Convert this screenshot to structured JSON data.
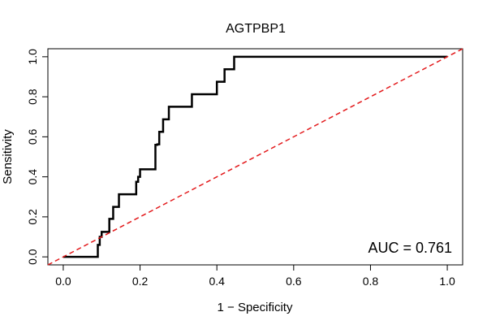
{
  "chart_data": {
    "type": "line",
    "title": "AGTPBP1",
    "xlabel": "1 − Specificity",
    "ylabel": "Sensitivity",
    "xlim": [
      -0.04,
      1.04
    ],
    "ylim": [
      -0.04,
      1.04
    ],
    "x_ticks": [
      "0.0",
      "0.2",
      "0.4",
      "0.6",
      "0.8",
      "1.0"
    ],
    "y_ticks": [
      "0.0",
      "0.2",
      "0.4",
      "0.6",
      "0.8",
      "1.0"
    ],
    "grid": false,
    "annotation": "AUC = 0.761",
    "series": [
      {
        "color": "#000000",
        "style": "solid",
        "x": [
          0.0,
          0.09,
          0.09,
          0.095,
          0.095,
          0.1,
          0.1,
          0.12,
          0.12,
          0.13,
          0.13,
          0.145,
          0.145,
          0.19,
          0.19,
          0.195,
          0.195,
          0.2,
          0.2,
          0.24,
          0.24,
          0.245,
          0.245,
          0.25,
          0.25,
          0.26,
          0.26,
          0.275,
          0.275,
          0.335,
          0.335,
          0.4,
          0.4,
          0.42,
          0.42,
          0.445,
          0.445,
          1.0
        ],
        "y": [
          0.0,
          0.0,
          0.06,
          0.06,
          0.1,
          0.1,
          0.125,
          0.125,
          0.19,
          0.19,
          0.25,
          0.25,
          0.3125,
          0.3125,
          0.375,
          0.375,
          0.4,
          0.4,
          0.4375,
          0.4375,
          0.56,
          0.56,
          0.5625,
          0.5625,
          0.625,
          0.625,
          0.6875,
          0.6875,
          0.75,
          0.75,
          0.8125,
          0.8125,
          0.875,
          0.875,
          0.9375,
          0.9375,
          1.0,
          1.0
        ]
      },
      {
        "color": "#e31a1c",
        "style": "dashed",
        "x": [
          -0.04,
          1.04
        ],
        "y": [
          -0.04,
          1.04
        ]
      }
    ]
  }
}
